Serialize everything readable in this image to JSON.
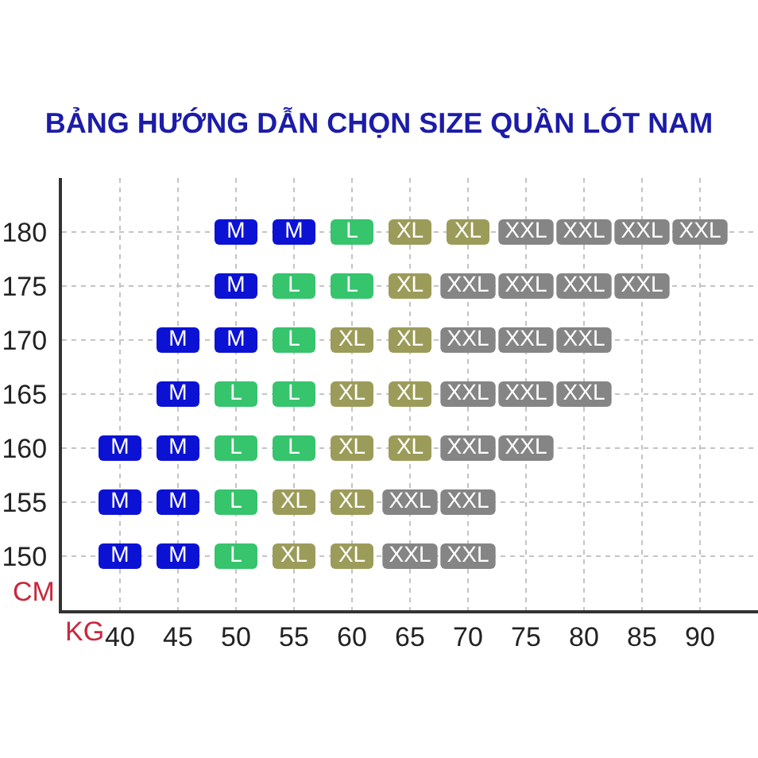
{
  "chart_data": {
    "type": "scatter",
    "title": "BẢNG HƯỚNG DẪN CHỌN SIZE QUẦN LÓT NAM",
    "xlabel": "KG",
    "ylabel": "CM",
    "xlim": [
      35,
      95
    ],
    "ylim": [
      145,
      185
    ],
    "xticks": [
      40,
      45,
      50,
      55,
      60,
      65,
      70,
      75,
      80,
      85,
      90
    ],
    "yticks": [
      150,
      155,
      160,
      165,
      170,
      175,
      180
    ],
    "grid": true,
    "marker": "square",
    "series": [
      {
        "name": "M",
        "color": "#0c12d4",
        "x": [
          50,
          55,
          50,
          45,
          50,
          45,
          40,
          45,
          40,
          45,
          40,
          45
        ],
        "values": [
          180,
          180,
          175,
          170,
          170,
          165,
          160,
          160,
          155,
          155,
          150,
          150
        ]
      },
      {
        "name": "L",
        "color": "#36c46c",
        "x": [
          60,
          55,
          60,
          55,
          50,
          55,
          50,
          55,
          50,
          50
        ],
        "values": [
          180,
          175,
          175,
          170,
          165,
          165,
          160,
          160,
          155,
          150
        ]
      },
      {
        "name": "XL",
        "color": "#9c9c5a",
        "x": [
          65,
          70,
          65,
          60,
          65,
          60,
          65,
          60,
          65,
          55,
          60,
          55,
          60
        ],
        "values": [
          180,
          180,
          175,
          170,
          170,
          165,
          165,
          160,
          160,
          155,
          155,
          150,
          150
        ]
      },
      {
        "name": "XXL",
        "color": "#858585",
        "x": [
          75,
          80,
          85,
          90,
          70,
          75,
          80,
          85,
          70,
          75,
          80,
          70,
          75,
          80,
          70,
          75,
          65,
          70,
          65,
          70
        ],
        "values": [
          180,
          180,
          180,
          180,
          175,
          175,
          175,
          175,
          170,
          170,
          170,
          165,
          165,
          165,
          160,
          160,
          155,
          155,
          150,
          150
        ]
      }
    ]
  }
}
